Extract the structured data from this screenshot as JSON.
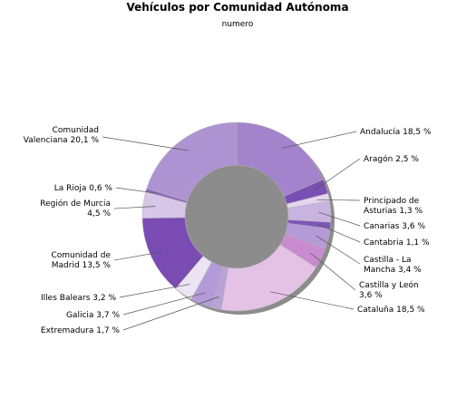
{
  "chart_data": {
    "type": "pie",
    "title": "Vehículos por Comunidad Autónoma",
    "subtitle": "numero",
    "slices": [
      {
        "name": "Andalucía",
        "value": 18.5,
        "label_lines": [
          "Andalucía 18,5 %"
        ],
        "color": "#a383cc"
      },
      {
        "name": "Aragón",
        "value": 2.5,
        "label_lines": [
          "Aragón 2,5 %"
        ],
        "color": "#7a4fb4"
      },
      {
        "name": "Principado de Asturias",
        "value": 1.3,
        "label_lines": [
          "Principado de",
          "Asturias 1,3 %"
        ],
        "color": "#e4d6ee"
      },
      {
        "name": "Canarias",
        "value": 3.6,
        "label_lines": [
          "Canarias 3,6 %"
        ],
        "color": "#c9b4df"
      },
      {
        "name": "Cantabria",
        "value": 1.1,
        "label_lines": [
          "Cantabria 1,1 %"
        ],
        "color": "#7f55b8"
      },
      {
        "name": "Castilla - La Mancha",
        "value": 3.4,
        "label_lines": [
          "Castilla - La",
          "Mancha 3,4 %"
        ],
        "color": "#b49ad6"
      },
      {
        "name": "Castilla y León",
        "value": 3.6,
        "label_lines": [
          "Castilla y León",
          "3,6 %"
        ],
        "color": "#c98bd0"
      },
      {
        "name": "Cataluña",
        "value": 18.5,
        "label_lines": [
          "Cataluña 18,5 %"
        ],
        "color": "#e3c2e6"
      },
      {
        "name": "Extremadura",
        "value": 1.7,
        "label_lines": [
          "Extremadura 1,7 %"
        ],
        "color": "#b8a2d6"
      },
      {
        "name": "Galicia",
        "value": 3.7,
        "label_lines": [
          "Galicia 3,7 %"
        ],
        "color": "#b39ad9"
      },
      {
        "name": "Illes Balears",
        "value": 3.2,
        "label_lines": [
          "Illes Balears 3,2 %"
        ],
        "color": "#ece4f4"
      },
      {
        "name": "Comunidad de Madrid",
        "value": 13.5,
        "label_lines": [
          "Comunidad de",
          "Madrid 13,5 %"
        ],
        "color": "#7b4bb4"
      },
      {
        "name": "Región de Murcia",
        "value": 4.5,
        "label_lines": [
          "Región de Murcia",
          "4,5 %"
        ],
        "color": "#d8c6e8"
      },
      {
        "name": "La Rioja",
        "value": 0.6,
        "label_lines": [
          "La Rioja 0,6 %"
        ],
        "color": "#8d6cbf"
      },
      {
        "name": "Comunidad Valenciana",
        "value": 20.1,
        "label_lines": [
          "Comunidad",
          "Valenciana 20,1 %"
        ],
        "color": "#ae93d2"
      }
    ]
  }
}
